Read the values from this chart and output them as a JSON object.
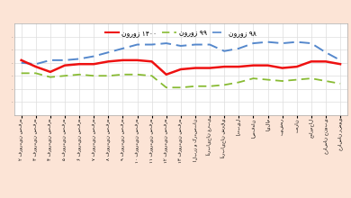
{
  "legend": [
    "نوروز ۱۴۰۰",
    "نوروز ۹۹",
    "نوروز ۹۸"
  ],
  "line1_color": "#ee1111",
  "line2_color": "#88bb33",
  "line3_color": "#5588cc",
  "background_color": "#fce4d6",
  "plot_bg_color": "#ffffff",
  "y_values_1400": [
    4.2,
    3.7,
    3.3,
    3.8,
    3.9,
    3.9,
    4.1,
    4.2,
    4.2,
    4.1,
    3.1,
    3.5,
    3.6,
    3.6,
    3.7,
    3.7,
    3.8,
    3.8,
    3.6,
    3.7,
    4.1,
    4.1,
    3.9
  ],
  "y_values_99": [
    3.2,
    3.2,
    2.9,
    3.0,
    3.1,
    3.0,
    3.0,
    3.1,
    3.1,
    3.0,
    2.1,
    2.1,
    2.2,
    2.2,
    2.3,
    2.5,
    2.8,
    2.7,
    2.6,
    2.7,
    2.8,
    2.6,
    2.4
  ],
  "y_values_98": [
    4.0,
    3.9,
    4.2,
    4.2,
    4.3,
    4.5,
    4.8,
    5.1,
    5.4,
    5.4,
    5.5,
    5.3,
    5.4,
    5.4,
    4.9,
    5.1,
    5.5,
    5.6,
    5.5,
    5.6,
    5.5,
    4.8,
    4.2
  ],
  "x_labels": [
    "۲ فروردین سفره",
    "۳ فروردین سفره",
    "۴ فروردین سفره",
    "۵ فروردین سفره",
    "۶ فروردین سفره",
    "۷ فروردین سفره",
    "۸ فروردین سفره",
    "۹ فروردین سفره",
    "۱۰ فروردین سفره",
    "۱۱ فروردین سفره",
    "۱۲ فروردین سفره",
    "۱۳ فروردین سفره",
    "البرز و کردستان",
    "آذربایجان غربی",
    "آذربایجان شرقی",
    "اردبیل",
    "اصفهان",
    "ایلام",
    "بوشهر",
    "تهران",
    "چهارمحال",
    "خراسان جنوبی",
    "خراسان رضوی"
  ],
  "ylim": [
    0,
    7
  ],
  "ytick_positions": [
    1,
    2,
    3,
    4,
    5,
    6
  ],
  "ytick_labels": [
    "",
    "",
    "",
    "",
    "",
    ""
  ],
  "grid_color": "#dddddd",
  "figsize": [
    3.9,
    2.2
  ],
  "dpi": 100
}
